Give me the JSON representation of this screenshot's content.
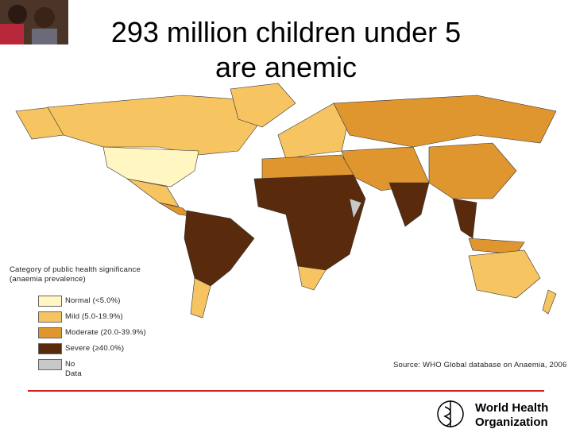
{
  "title": [
    "293 million children under 5",
    "are anemic"
  ],
  "legend": {
    "title": [
      "Category of public health significance",
      "(anaemia prevalence)"
    ],
    "items": [
      {
        "label": "Normal (<5.0%)",
        "color": "#fff6c2"
      },
      {
        "label": "Mild (5.0-19.9%)",
        "color": "#f7c462"
      },
      {
        "label": "Moderate (20.0-39.9%)",
        "color": "#e0962e"
      },
      {
        "label": "Severe (≥40.0%)",
        "color": "#5a2a0c"
      },
      {
        "label": "No Data",
        "color": "#c8c8c8"
      }
    ]
  },
  "source": "Source: WHO Global database on Anaemia, 2006",
  "logo": [
    "World Health",
    "Organization"
  ]
}
